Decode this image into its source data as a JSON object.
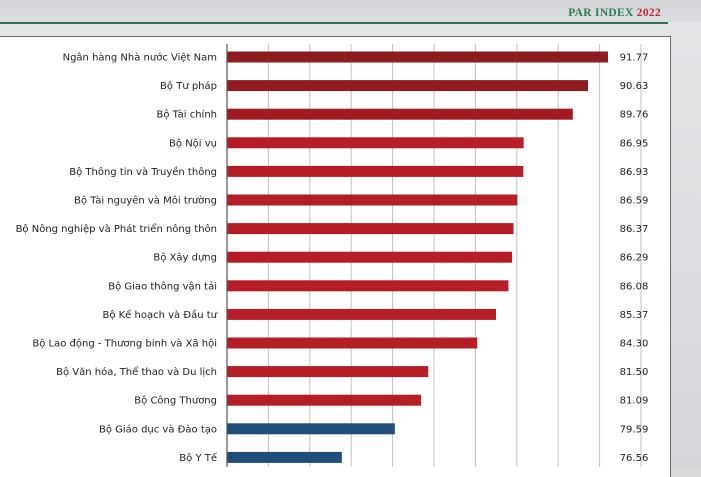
{
  "header": {
    "brand": "PAR INDEX",
    "year": "2022",
    "accent_color": "#2e7d52",
    "year_color": "#c0282d"
  },
  "chart_data": {
    "type": "bar",
    "orientation": "horizontal",
    "title": "",
    "xlabel": "",
    "ylabel": "",
    "xlim": [
      70,
      93
    ],
    "grid": true,
    "categories": [
      "Ngân hàng Nhà nước Việt Nam",
      "Bộ Tư pháp",
      "Bộ Tài chính",
      "Bộ Nội vụ",
      "Bộ Thông tin và Truyền thông",
      "Bộ Tài nguyên và Môi trường",
      "Bộ Nông nghiệp và Phát triển nông thôn",
      "Bộ Xây dựng",
      "Bộ Giao thông vận tải",
      "Bộ Kế hoạch và Đầu tư",
      "Bộ Lao động - Thương binh và Xã hội",
      "Bộ Văn hóa, Thể thao và Du lịch",
      "Bộ Công Thương",
      "Bộ Giáo dục và Đào tạo",
      "Bộ Y Tế"
    ],
    "values": [
      91.77,
      90.63,
      89.76,
      86.95,
      86.93,
      86.59,
      86.37,
      86.29,
      86.08,
      85.37,
      84.3,
      81.5,
      81.09,
      79.59,
      76.56
    ],
    "value_labels": [
      "91.77",
      "90.63",
      "89.76",
      "86.95",
      "86.93",
      "86.59",
      "86.37",
      "86.29",
      "86.08",
      "85.37",
      "84.30",
      "81.50",
      "81.09",
      "79.59",
      "76.56"
    ],
    "bar_colors": [
      "#8e1b1f",
      "#8e1b1f",
      "#a11c22",
      "#b51e26",
      "#b51e26",
      "#b51e26",
      "#b51e26",
      "#b51e26",
      "#b51e26",
      "#b51e26",
      "#b51e26",
      "#b51e26",
      "#b51e26",
      "#1f4e79",
      "#1f4e79"
    ]
  }
}
